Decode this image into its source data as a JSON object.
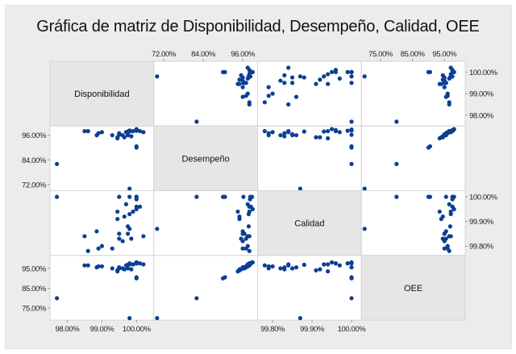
{
  "chart_data": {
    "type": "scatter-matrix",
    "title": "Gráfica de matriz de Disponibilidad, Desempeño, Calidad, OEE",
    "variables": [
      "Disponibilidad",
      "Desempeño",
      "Calidad",
      "OEE"
    ],
    "ranges": {
      "Disponibilidad": [
        97.5,
        100.5
      ],
      "Desempeño": [
        69,
        100.5
      ],
      "Calidad": [
        99.762,
        100.025
      ],
      "OEE": [
        69,
        101.5
      ]
    },
    "ticks": {
      "Disponibilidad": {
        "values": [
          98,
          99,
          100
        ],
        "labels": [
          "98.00%",
          "99.00%",
          "100.00%"
        ]
      },
      "Desempeño": {
        "values": [
          72,
          84,
          96
        ],
        "labels": [
          "72.00%",
          "84.00%",
          "96.00%"
        ]
      },
      "Calidad": {
        "values": [
          99.8,
          99.9,
          100.0
        ],
        "labels": [
          "99.80%",
          "99.90%",
          "100.00%"
        ]
      },
      "OEE": {
        "values": [
          75,
          85,
          95
        ],
        "labels": [
          "75.00%",
          "85.00%",
          "95.00%"
        ]
      }
    },
    "grid": false,
    "point_color": "#0b3f94",
    "records": [
      [
        97.7,
        82,
        100.0,
        80
      ],
      [
        99.8,
        70,
        99.87,
        70
      ],
      [
        100.0,
        90,
        100.0,
        90
      ],
      [
        100.0,
        90.6,
        100.0,
        90.5
      ],
      [
        98.5,
        98,
        99.84,
        96.5
      ],
      [
        98.6,
        98,
        99.78,
        96.5
      ],
      [
        98.85,
        96,
        99.86,
        95.5
      ],
      [
        99.0,
        97.5,
        99.8,
        96
      ],
      [
        99.3,
        96,
        99.79,
        95
      ],
      [
        99.45,
        95,
        99.91,
        94
      ],
      [
        99.5,
        97,
        99.83,
        95.5
      ],
      [
        99.5,
        96.5,
        99.85,
        95
      ],
      [
        99.45,
        94.5,
        99.94,
        93.5
      ],
      [
        99.6,
        96,
        99.82,
        95
      ],
      [
        99.7,
        97.5,
        99.97,
        96.5
      ],
      [
        99.75,
        97.8,
        99.88,
        96.8
      ],
      [
        99.8,
        97.8,
        99.93,
        97
      ],
      [
        99.85,
        95.5,
        99.83,
        94.5
      ],
      [
        99.9,
        98,
        99.94,
        97
      ],
      [
        100.0,
        98.5,
        99.96,
        97.5
      ],
      [
        100.0,
        98.2,
        99.99,
        97.5
      ],
      [
        100.1,
        98,
        99.96,
        97.5
      ],
      [
        100.2,
        97.5,
        99.84,
        97
      ],
      [
        99.75,
        96,
        99.85,
        95
      ],
      [
        99.65,
        95,
        99.92,
        94.5
      ],
      [
        100.0,
        99,
        99.95,
        98
      ],
      [
        100.0,
        98.8,
        100.0,
        98
      ],
      [
        99.8,
        98.3,
        100.0,
        97.5
      ],
      [
        99.5,
        96.2,
        100.0,
        95.5
      ],
      [
        98.9,
        97,
        99.79,
        96
      ]
    ]
  }
}
